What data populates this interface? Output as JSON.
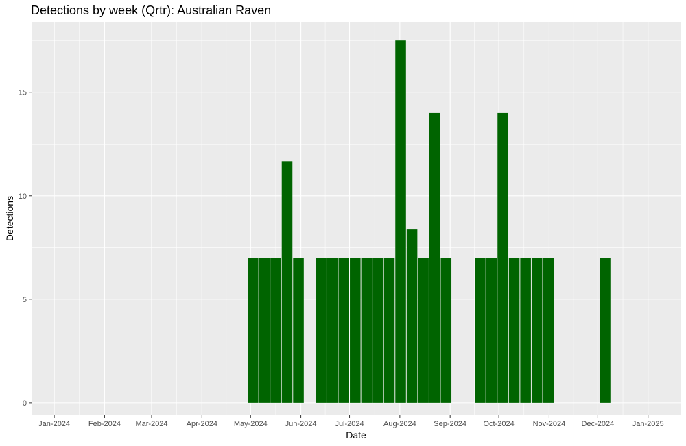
{
  "chart_data": {
    "type": "bar",
    "title": "Detections by week (Qrtr): Australian Raven",
    "xlabel": "Date",
    "ylabel": "Detections",
    "ylim": [
      -0.6,
      18.4
    ],
    "xlim": [
      "2023-12-18",
      "2025-01-21"
    ],
    "x_ticks": [
      {
        "date": "2024-01-01",
        "label": "Jan-2024"
      },
      {
        "date": "2024-02-01",
        "label": "Feb-2024"
      },
      {
        "date": "2024-03-01",
        "label": "Mar-2024"
      },
      {
        "date": "2024-04-01",
        "label": "Apr-2024"
      },
      {
        "date": "2024-05-01",
        "label": "May-2024"
      },
      {
        "date": "2024-06-01",
        "label": "Jun-2024"
      },
      {
        "date": "2024-07-01",
        "label": "Jul-2024"
      },
      {
        "date": "2024-08-01",
        "label": "Aug-2024"
      },
      {
        "date": "2024-09-01",
        "label": "Sep-2024"
      },
      {
        "date": "2024-10-01",
        "label": "Oct-2024"
      },
      {
        "date": "2024-11-01",
        "label": "Nov-2024"
      },
      {
        "date": "2024-12-01",
        "label": "Dec-2024"
      },
      {
        "date": "2025-01-01",
        "label": "Jan-2025"
      }
    ],
    "y_ticks": [
      0,
      5,
      10,
      15
    ],
    "grid": true,
    "bar_color": "#006400",
    "panel_color": "#ebebeb",
    "grid_color": "#ffffff",
    "points": [
      {
        "week": "2024-04-29",
        "value": 7
      },
      {
        "week": "2024-05-06",
        "value": 7
      },
      {
        "week": "2024-05-13",
        "value": 7
      },
      {
        "week": "2024-05-20",
        "value": 11.67
      },
      {
        "week": "2024-05-27",
        "value": 7
      },
      {
        "week": "2024-06-10",
        "value": 7
      },
      {
        "week": "2024-06-17",
        "value": 7
      },
      {
        "week": "2024-06-24",
        "value": 7
      },
      {
        "week": "2024-07-01",
        "value": 7
      },
      {
        "week": "2024-07-08",
        "value": 7
      },
      {
        "week": "2024-07-15",
        "value": 7
      },
      {
        "week": "2024-07-22",
        "value": 7
      },
      {
        "week": "2024-07-29",
        "value": 17.5
      },
      {
        "week": "2024-08-05",
        "value": 8.4
      },
      {
        "week": "2024-08-12",
        "value": 7
      },
      {
        "week": "2024-08-19",
        "value": 14
      },
      {
        "week": "2024-08-26",
        "value": 7
      },
      {
        "week": "2024-09-16",
        "value": 7
      },
      {
        "week": "2024-09-23",
        "value": 7
      },
      {
        "week": "2024-09-30",
        "value": 14
      },
      {
        "week": "2024-10-07",
        "value": 7
      },
      {
        "week": "2024-10-14",
        "value": 7
      },
      {
        "week": "2024-10-21",
        "value": 7
      },
      {
        "week": "2024-10-28",
        "value": 7
      },
      {
        "week": "2024-12-02",
        "value": 7
      }
    ]
  }
}
